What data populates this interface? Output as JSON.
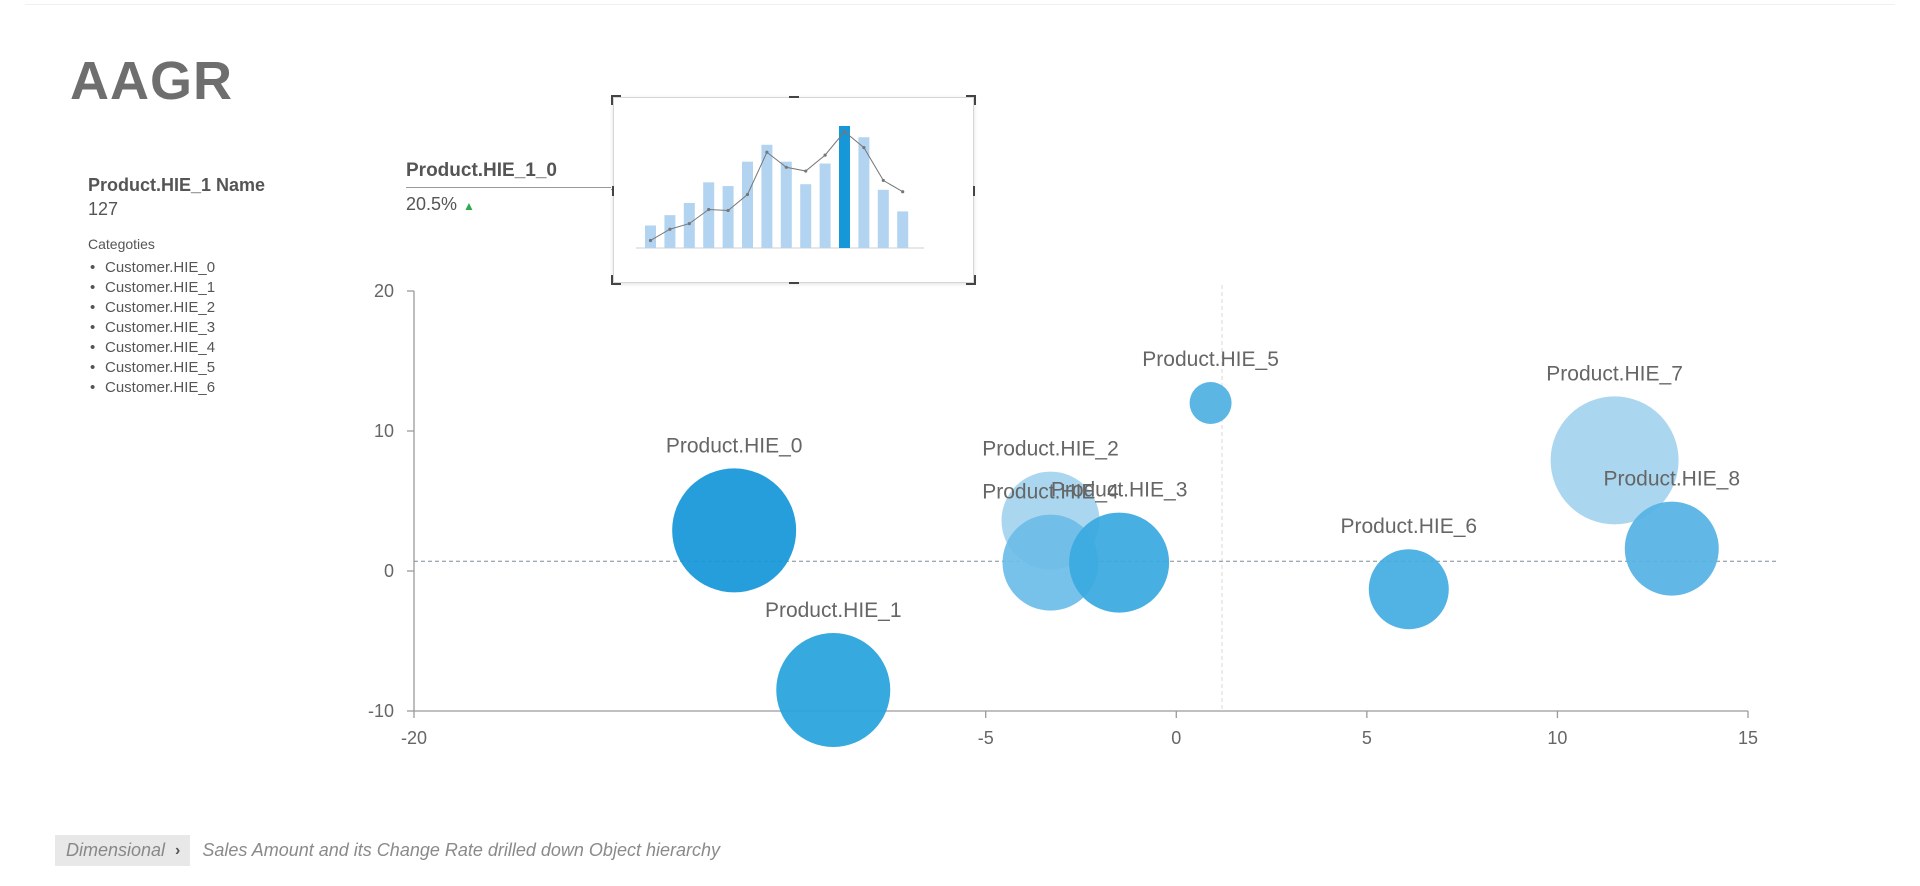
{
  "page": {
    "title": "AAGR"
  },
  "info_panel": {
    "name_label": "Product.HIE_1 Name",
    "count": "127",
    "categories_label": "Categoties",
    "categories": [
      "Customer.HIE_0",
      "Customer.HIE_1",
      "Customer.HIE_2",
      "Customer.HIE_3",
      "Customer.HIE_4",
      "Customer.HIE_5",
      "Customer.HIE_6"
    ]
  },
  "tooltip": {
    "name": "Product.HIE_1_0",
    "value": "20.5%",
    "trend_icon": "triangle-up-icon",
    "trend_color": "#2faa4f",
    "mini_chart": {
      "type": "bar",
      "bars": [
        2.4,
        3.5,
        4.8,
        7.0,
        6.6,
        9.2,
        11.0,
        9.2,
        6.8,
        9.0,
        13.0,
        11.8,
        6.2,
        3.9
      ],
      "line": [
        0.8,
        2.0,
        2.6,
        4.1,
        4.0,
        5.7,
        10.2,
        8.6,
        8.2,
        9.9,
        12.4,
        10.7,
        7.2,
        6.0
      ],
      "highlight_index": 10,
      "bar_color": "#b3d4f1",
      "highlight_color": "#1597d8",
      "line_color": "#777777"
    }
  },
  "chart_data": {
    "type": "scatter",
    "subtype": "bubble",
    "xlim": [
      -20,
      15
    ],
    "ylim": [
      -10,
      20
    ],
    "xticks": [
      -20,
      -5,
      0,
      5,
      10,
      15
    ],
    "yticks": [
      20,
      10,
      0,
      -10
    ],
    "reference_lines": {
      "x": 1.2,
      "y": 0.7
    },
    "points": [
      {
        "name": "Product.HIE_0",
        "x": -11.6,
        "y": 2.9,
        "size": 62,
        "color": "#1597d8"
      },
      {
        "name": "Product.HIE_1",
        "x": -9.0,
        "y": -8.5,
        "size": 57,
        "color": "#27a3dd"
      },
      {
        "name": "Product.HIE_2",
        "x": -3.3,
        "y": 3.6,
        "size": 49,
        "color": "#a5d3ee"
      },
      {
        "name": "Product.HIE_4",
        "x": -3.3,
        "y": 0.6,
        "size": 48,
        "color": "#6dbde8"
      },
      {
        "name": "Product.HIE_3",
        "x": -1.5,
        "y": 0.6,
        "size": 50,
        "color": "#3aa9e0"
      },
      {
        "name": "Product.HIE_5",
        "x": 0.9,
        "y": 12.0,
        "size": 21,
        "color": "#4fb0e2"
      },
      {
        "name": "Product.HIE_6",
        "x": 6.1,
        "y": -1.3,
        "size": 40,
        "color": "#44ace2"
      },
      {
        "name": "Product.HIE_7",
        "x": 11.5,
        "y": 7.9,
        "size": 64,
        "color": "#a5d3ee"
      },
      {
        "name": "Product.HIE_8",
        "x": 13.0,
        "y": 1.6,
        "size": 47,
        "color": "#55b3e4"
      }
    ]
  },
  "footer": {
    "breadcrumb": "Dimensional",
    "description": "Sales Amount and its Change Rate drilled down Object hierarchy"
  }
}
